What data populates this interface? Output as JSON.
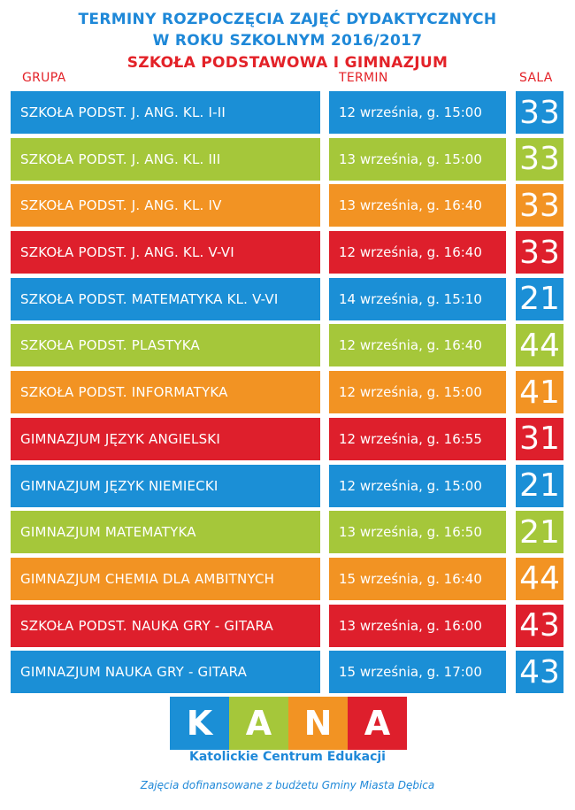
{
  "header": {
    "line1": "TERMINY ROZPOCZĘCIA ZAJĘĆ DYDAKTYCZNYCH",
    "line2": "W ROKU SZKOLNYM 2016/2017",
    "line3": "SZKOŁA PODSTAWOWA I GIMNAZJUM"
  },
  "columns": {
    "grupa": "GRUPA",
    "termin": "TERMIN",
    "sala": "SALA"
  },
  "colors": {
    "blue": "#1b8fd6",
    "green": "#a5c73a",
    "orange": "#f29323",
    "red": "#de1f2c",
    "title_blue": "#1e88d8",
    "title_red": "#e32228"
  },
  "rows": [
    {
      "grupa": "SZKOŁA PODST. J. ANG. KL. I-II",
      "termin": "12 września, g. 15:00",
      "sala": "33",
      "color": "#1b8fd6"
    },
    {
      "grupa": "SZKOŁA PODST. J. ANG. KL. III",
      "termin": "13 września, g. 15:00",
      "sala": "33",
      "color": "#a5c73a"
    },
    {
      "grupa": "SZKOŁA PODST. J. ANG. KL. IV",
      "termin": "13 września, g. 16:40",
      "sala": "33",
      "color": "#f29323"
    },
    {
      "grupa": "SZKOŁA PODST. J. ANG. KL. V-VI",
      "termin": "12 września, g. 16:40",
      "sala": "33",
      "color": "#de1f2c"
    },
    {
      "grupa": "SZKOŁA PODST. MATEMATYKA KL. V-VI",
      "termin": "14 września, g. 15:10",
      "sala": "21",
      "color": "#1b8fd6"
    },
    {
      "grupa": "SZKOŁA PODST. PLASTYKA",
      "termin": "12 września, g. 16:40",
      "sala": "44",
      "color": "#a5c73a"
    },
    {
      "grupa": "SZKOŁA PODST. INFORMATYKA",
      "termin": "12 września, g. 15:00",
      "sala": "41",
      "color": "#f29323"
    },
    {
      "grupa": "GIMNAZJUM JĘZYK ANGIELSKI",
      "termin": "12 września, g. 16:55",
      "sala": "31",
      "color": "#de1f2c"
    },
    {
      "grupa": "GIMNAZJUM JĘZYK NIEMIECKI",
      "termin": "12 września, g. 15:00",
      "sala": "21",
      "color": "#1b8fd6"
    },
    {
      "grupa": "GIMNAZJUM MATEMATYKA",
      "termin": "13 września, g. 16:50",
      "sala": "21",
      "color": "#a5c73a"
    },
    {
      "grupa": "GIMNAZJUM CHEMIA DLA AMBITNYCH",
      "termin": "15 września, g. 16:40",
      "sala": "44",
      "color": "#f29323"
    },
    {
      "grupa": "SZKOŁA PODST. NAUKA GRY - GITARA",
      "termin": "13 września, g. 16:00",
      "sala": "43",
      "color": "#de1f2c"
    },
    {
      "grupa": "GIMNAZJUM NAUKA GRY - GITARA",
      "termin": "15 września, g. 17:00",
      "sala": "43",
      "color": "#1b8fd6"
    }
  ],
  "logo": {
    "letters": [
      {
        "char": "K",
        "color": "#1b8fd6"
      },
      {
        "char": "A",
        "color": "#a5c73a"
      },
      {
        "char": "N",
        "color": "#f29323"
      },
      {
        "char": "A",
        "color": "#de1f2c"
      }
    ],
    "subtitle": "Katolickie Centrum Edukacji"
  },
  "footer": {
    "funding": "Zajęcia dofinansowane z budżetu Gminy Miasta Dębica"
  }
}
